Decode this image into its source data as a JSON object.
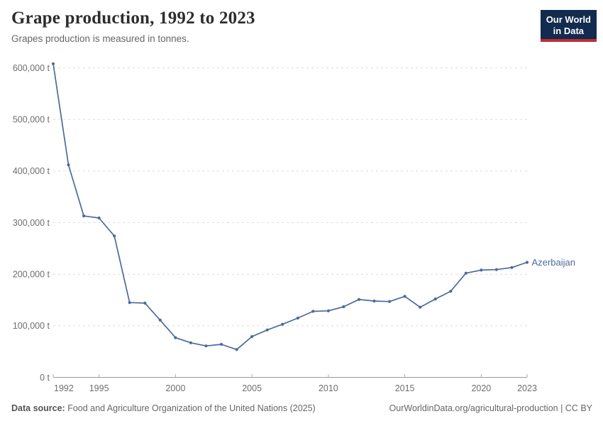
{
  "header": {
    "title": "Grape production, 1992 to 2023",
    "subtitle": "Grapes production is measured in tonnes.",
    "logo": {
      "line1": "Our World",
      "line2": "in Data"
    }
  },
  "chart_data": {
    "type": "line",
    "title": "Grape production, 1992 to 2023",
    "ylabel": "",
    "xlabel": "",
    "unit": "t",
    "x": [
      1992,
      1993,
      1994,
      1995,
      1996,
      1997,
      1998,
      1999,
      2000,
      2001,
      2002,
      2003,
      2004,
      2005,
      2006,
      2007,
      2008,
      2009,
      2010,
      2011,
      2012,
      2013,
      2014,
      2015,
      2016,
      2017,
      2018,
      2019,
      2020,
      2021,
      2022,
      2023
    ],
    "series": [
      {
        "name": "Azerbaijan",
        "color": "#4C6A9C",
        "values": [
          608000,
          412000,
          313000,
          309000,
          274000,
          145000,
          144000,
          111000,
          77000,
          67000,
          61000,
          64000,
          54000,
          79000,
          92000,
          103000,
          115000,
          128000,
          129000,
          137000,
          151000,
          148000,
          147000,
          157000,
          136000,
          152000,
          167000,
          202000,
          208000,
          209000,
          213000,
          223000
        ]
      }
    ],
    "xlim": [
      1992,
      2023
    ],
    "ylim": [
      0,
      600000
    ],
    "xticks": [
      1992,
      1995,
      2000,
      2005,
      2010,
      2015,
      2020,
      2023
    ],
    "yticks": [
      0,
      100000,
      200000,
      300000,
      400000,
      500000,
      600000
    ],
    "ytick_suffix": " t",
    "grid": "horizontal-dashed",
    "legend_position": "end-of-line",
    "end_label": "Azerbaijan"
  },
  "footer": {
    "datasource_label": "Data source:",
    "datasource_text": " Food and Agriculture Organization of the United Nations (2025)",
    "attribution": "OurWorldinData.org/agricultural-production | CC BY"
  },
  "colors": {
    "line": "#4C6A9C",
    "grid": "#dcdcdc",
    "axis_line": "#9a9a9a",
    "tick_mark": "#adadad",
    "tick_text": "#6e6e6e",
    "logo_bg": "#122b4e",
    "logo_red": "#c12e34"
  }
}
